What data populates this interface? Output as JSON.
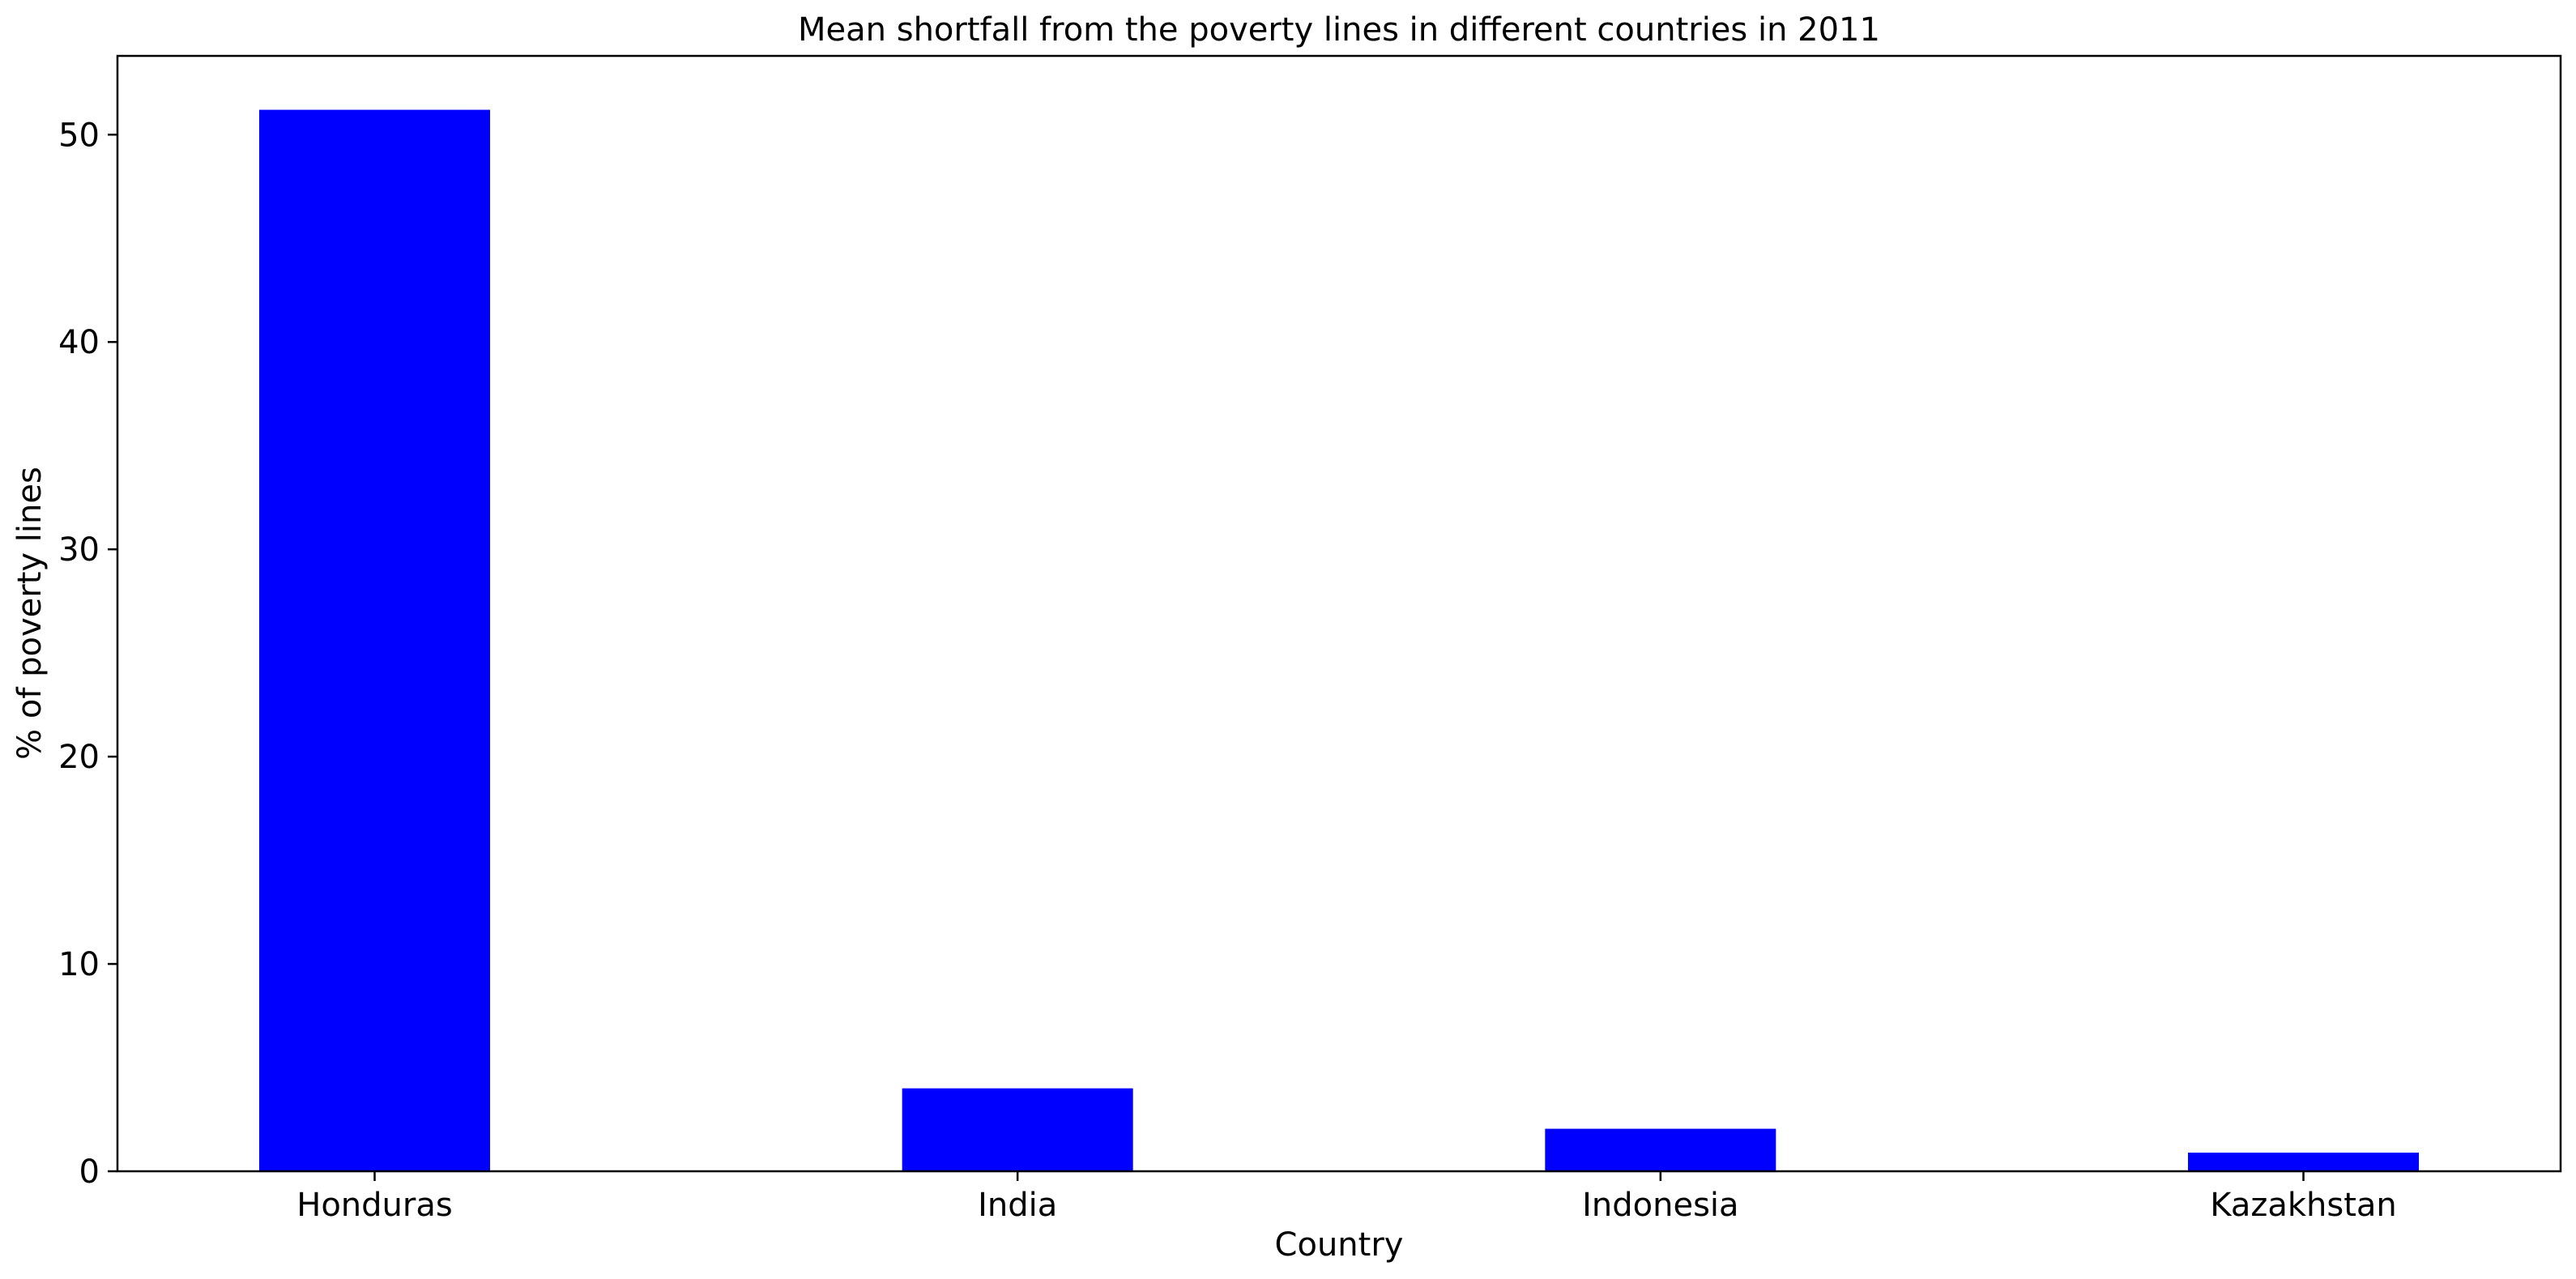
{
  "chart_data": {
    "type": "bar",
    "title": "Mean shortfall from the poverty lines in different countries in 2011",
    "xlabel": "Country",
    "ylabel": "% of poverty lines",
    "categories": [
      "Honduras",
      "India",
      "Indonesia",
      "Kazakhstan"
    ],
    "values": [
      51.2,
      4.0,
      2.05,
      0.9
    ],
    "ylim": [
      0,
      53.8
    ],
    "yticks": [
      0,
      10,
      20,
      30,
      40,
      50
    ],
    "grid": false,
    "legend": "none",
    "colors": {
      "bar": "#0000ff",
      "axes": "#000000",
      "background": "#ffffff"
    }
  }
}
